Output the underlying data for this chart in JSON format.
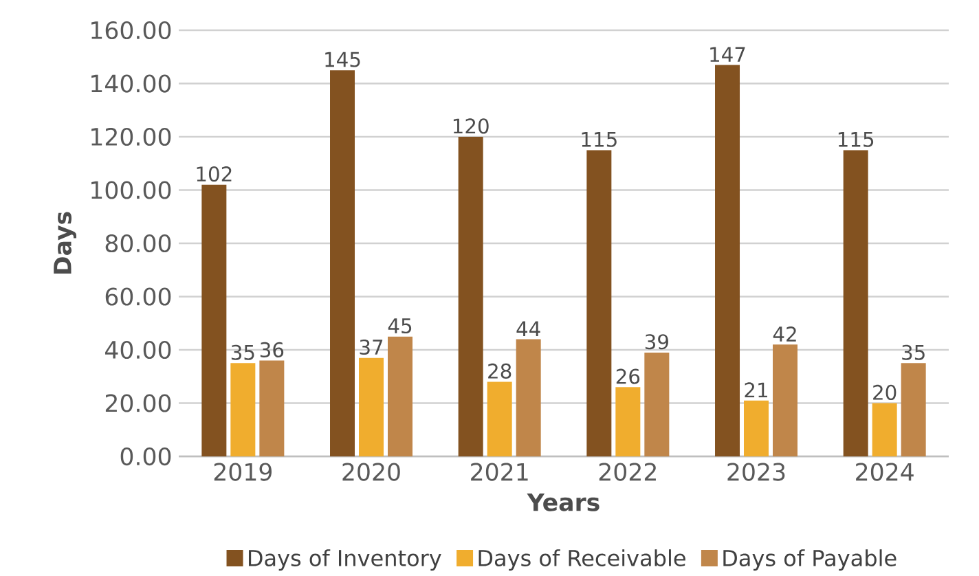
{
  "chart_data": {
    "type": "bar",
    "xlabel": "Years",
    "ylabel": "Days",
    "categories": [
      "2019",
      "2020",
      "2021",
      "2022",
      "2023",
      "2024"
    ],
    "series": [
      {
        "name": "Days of Inventory",
        "color": "#835220",
        "values": [
          102,
          145,
          120,
          115,
          147,
          115
        ]
      },
      {
        "name": "Days of Receivable",
        "color": "#f0ad2e",
        "values": [
          35,
          37,
          28,
          26,
          21,
          20
        ]
      },
      {
        "name": "Days of Payable",
        "color": "#c0864a",
        "values": [
          36,
          45,
          44,
          39,
          42,
          35
        ]
      }
    ],
    "ylim": [
      0,
      160
    ],
    "yticks": [
      {
        "value": 0,
        "label": "0.00"
      },
      {
        "value": 20,
        "label": "20.00"
      },
      {
        "value": 40,
        "label": "40.00"
      },
      {
        "value": 60,
        "label": "60.00"
      },
      {
        "value": 80,
        "label": "80.00"
      },
      {
        "value": 100,
        "label": "100.00"
      },
      {
        "value": 120,
        "label": "120.00"
      },
      {
        "value": 140,
        "label": "140.00"
      },
      {
        "value": 160,
        "label": "160.00"
      }
    ],
    "grid": "y",
    "legend": "bottom",
    "data_labels": true
  }
}
